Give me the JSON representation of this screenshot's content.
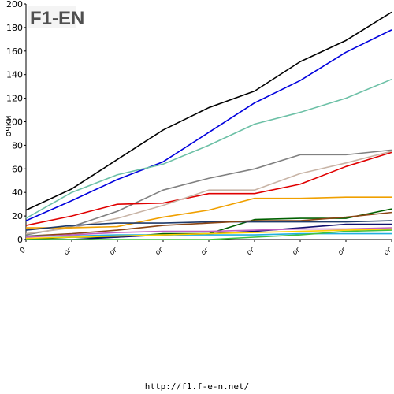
{
  "logo": {
    "text": "F1-EN",
    "colors": {
      "primary": "#4f4f4f",
      "accent": "#e87e1d"
    }
  },
  "footer": {
    "url": "http://f1.f-e-n.net/"
  },
  "chart_data": {
    "type": "line",
    "ylabel": "очки",
    "ylim": [
      0,
      200
    ],
    "yticks": [
      0,
      20,
      40,
      60,
      80,
      100,
      120,
      140,
      160,
      180,
      200
    ],
    "grid": false,
    "x": [
      0,
      1,
      2,
      3,
      4,
      5,
      6,
      7,
      8
    ],
    "xticklabels": [
      "0",
      "or",
      "or",
      "or",
      "or",
      "or",
      "or",
      "or",
      "or"
    ],
    "series": [
      {
        "color": "#000000",
        "values": [
          25,
          43,
          68,
          93,
          112,
          126,
          151,
          169,
          193
        ]
      },
      {
        "color": "#0000dd",
        "values": [
          16,
          33,
          51,
          66,
          91,
          116,
          135,
          159,
          178
        ]
      },
      {
        "color": "#6cc0a6",
        "values": [
          18,
          40,
          55,
          64,
          80,
          98,
          108,
          120,
          136
        ]
      },
      {
        "color": "#808080",
        "values": [
          4,
          11,
          24,
          42,
          52,
          60,
          72,
          72,
          76
        ]
      },
      {
        "color": "#e00000",
        "values": [
          12,
          20,
          30,
          31,
          39,
          39,
          47,
          62,
          74
        ]
      },
      {
        "color": "#c8b4a6",
        "values": [
          5,
          10,
          18,
          29,
          42,
          42,
          56,
          65,
          75
        ]
      },
      {
        "color": "#f0a000",
        "values": [
          10,
          10,
          11,
          19,
          25,
          35,
          35,
          36,
          36
        ]
      },
      {
        "color": "#006000",
        "values": [
          0,
          2,
          2,
          5,
          5,
          17,
          18,
          18,
          26
        ]
      },
      {
        "color": "#1e3a6a",
        "values": [
          8,
          12,
          14,
          14,
          15,
          15,
          15,
          15,
          16
        ]
      },
      {
        "color": "#8b4513",
        "values": [
          3,
          5,
          8,
          12,
          14,
          16,
          16,
          19,
          23
        ]
      },
      {
        "color": "#20b0e0",
        "values": [
          3,
          3,
          4,
          4,
          4,
          4,
          5,
          5,
          5
        ]
      },
      {
        "color": "#101070",
        "values": [
          0,
          0,
          2,
          4,
          5,
          7,
          10,
          13,
          13
        ]
      },
      {
        "color": "#c060c0",
        "values": [
          2,
          4,
          6,
          7,
          7,
          8,
          9,
          9,
          10
        ]
      },
      {
        "color": "#40c040",
        "values": [
          0,
          0,
          0,
          0,
          0,
          2,
          4,
          7,
          8
        ]
      },
      {
        "color": "#ffd000",
        "values": [
          1,
          2,
          3,
          4,
          5,
          6,
          7,
          8,
          9
        ]
      }
    ]
  }
}
